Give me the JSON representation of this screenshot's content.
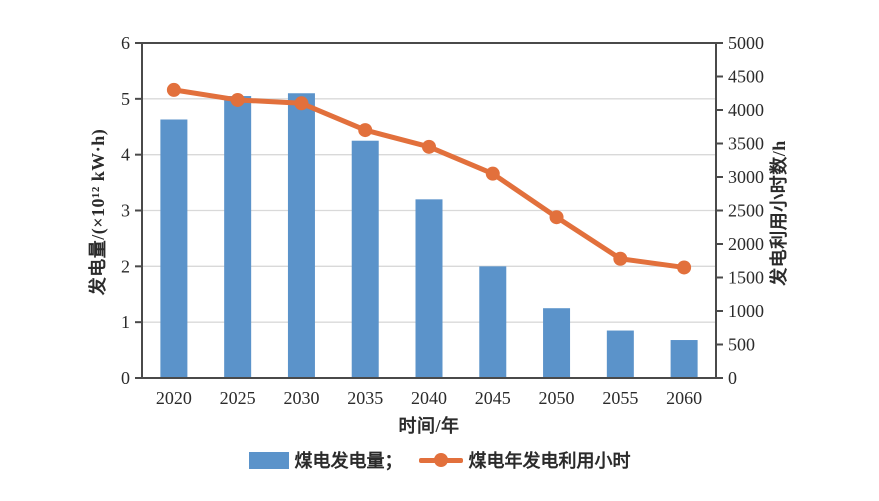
{
  "chart_data": {
    "type": "bar+line",
    "title": "",
    "categories": [
      "2020",
      "2025",
      "2030",
      "2035",
      "2040",
      "2045",
      "2050",
      "2055",
      "2060"
    ],
    "series": [
      {
        "name": "煤电发电量",
        "type": "bar",
        "axis": "left",
        "values": [
          4.63,
          5.05,
          5.1,
          4.25,
          3.2,
          2.0,
          1.25,
          0.85,
          0.68
        ]
      },
      {
        "name": "煤电年发电利用小时",
        "type": "line",
        "axis": "right",
        "values": [
          4300,
          4150,
          4100,
          3700,
          3450,
          3050,
          2400,
          1780,
          1650
        ]
      }
    ],
    "xlabel": "时间/年",
    "left_axis": {
      "label": "发电量/(×10¹² kW·h)",
      "min": 0,
      "max": 6,
      "step": 1
    },
    "right_axis": {
      "label": "发电利用小时数/h",
      "min": 0,
      "max": 5000,
      "step": 500
    },
    "grid": "horizontal-at-left-ticks",
    "legend": {
      "position": "bottom-center",
      "items": [
        {
          "label": "煤电发电量；",
          "marker": "bar"
        },
        {
          "label": "煤电年发电利用小时",
          "marker": "line"
        }
      ]
    },
    "colors": {
      "bar": "#5b93ca",
      "line": "#e2703c",
      "axis": "#4a4a4a",
      "gridline": "#d9d9d9",
      "text": "#2b2b2b",
      "background": "#ffffff"
    }
  }
}
